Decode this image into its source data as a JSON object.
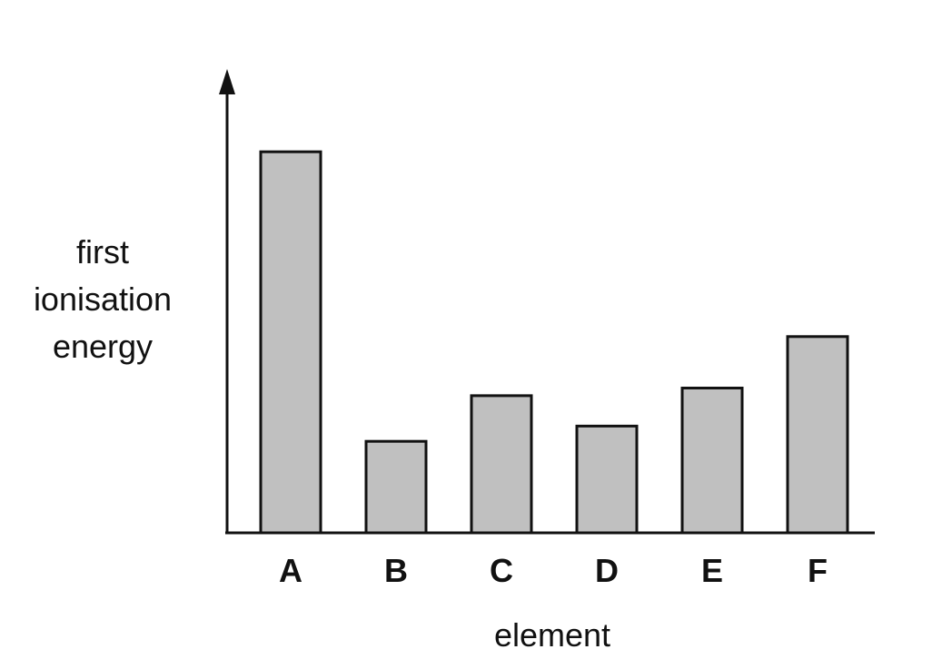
{
  "chart_data": {
    "type": "bar",
    "categories": [
      "A",
      "B",
      "C",
      "D",
      "E",
      "F"
    ],
    "values": [
      100,
      24,
      36,
      28,
      38,
      51.5
    ],
    "title": "",
    "xlabel": "element",
    "ylabel": "first ionisation energy",
    "ylabel_lines": [
      "first",
      "ionisation",
      "energy"
    ],
    "ylim": [
      0,
      116
    ],
    "grid": false,
    "legend": "none",
    "bar_color": "#c0c0c0",
    "edge_color": "#111111"
  }
}
